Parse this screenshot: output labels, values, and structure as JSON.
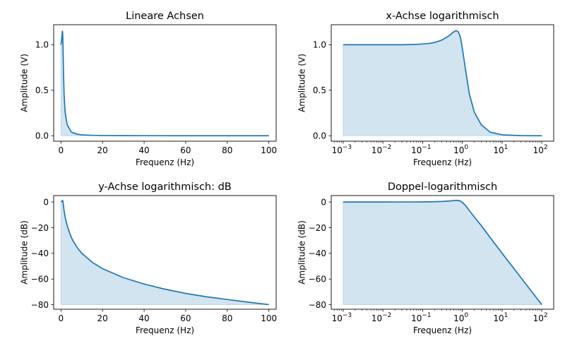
{
  "chart_data": [
    {
      "type": "area",
      "title": "Lineare Achsen",
      "xlabel": "Frequenz (Hz)",
      "ylabel": "Amplitude (V)",
      "xscale": "linear",
      "yscale": "linear",
      "xlim": [
        -3.5,
        103.5
      ],
      "ylim": [
        -0.06,
        1.22
      ],
      "xticks": [
        0,
        20,
        40,
        60,
        80,
        100
      ],
      "xtick_labels": [
        "0",
        "20",
        "40",
        "60",
        "80",
        "100"
      ],
      "yticks": [
        0.0,
        0.5,
        1.0
      ],
      "ytick_labels": [
        "0.0",
        "0.5",
        "1.0"
      ],
      "grid": false,
      "series": [
        {
          "color": "#1f77b4",
          "x": [
            0.001,
            0.3,
            0.5,
            0.6,
            0.7,
            0.8,
            0.9,
            1,
            1.2,
            1.5,
            2,
            3,
            5,
            8,
            10,
            15,
            20,
            30,
            40,
            60,
            80,
            100
          ],
          "y": [
            1.0,
            1.05,
            1.1,
            1.13,
            1.15,
            1.14,
            1.08,
            0.96,
            0.73,
            0.46,
            0.26,
            0.12,
            0.04,
            0.016,
            0.01,
            0.0045,
            0.0025,
            0.0011,
            0.0006,
            0.0003,
            0.00016,
            0.0001
          ]
        }
      ]
    },
    {
      "type": "area",
      "title": "x-Achse logarithmisch",
      "xlabel": "Frequenz (Hz)",
      "ylabel": "Amplitude (V)",
      "xscale": "log",
      "yscale": "linear",
      "xlim": [
        0.000501,
        199.5
      ],
      "ylim": [
        -0.06,
        1.22
      ],
      "xticks": [
        0.001,
        0.01,
        0.1,
        1,
        10,
        100
      ],
      "xtick_labels": [
        [
          "10",
          "−3"
        ],
        [
          "10",
          "−2"
        ],
        [
          "10",
          "−1"
        ],
        [
          "10",
          "0"
        ],
        [
          "10",
          "1"
        ],
        [
          "10",
          "2"
        ]
      ],
      "yticks": [
        0.0,
        0.5,
        1.0
      ],
      "ytick_labels": [
        "0.0",
        "0.5",
        "1.0"
      ],
      "grid": false,
      "series": [
        {
          "color": "#1f77b4",
          "x": [
            0.001,
            0.003,
            0.01,
            0.03,
            0.05,
            0.08,
            0.1,
            0.15,
            0.2,
            0.3,
            0.4,
            0.5,
            0.6,
            0.7,
            0.8,
            0.9,
            1,
            1.2,
            1.5,
            2,
            3,
            5,
            10,
            30,
            100
          ],
          "y": [
            1.0,
            1.0,
            1.0,
            1.0,
            1.002,
            1.005,
            1.008,
            1.015,
            1.025,
            1.05,
            1.08,
            1.11,
            1.14,
            1.155,
            1.14,
            1.08,
            0.96,
            0.73,
            0.46,
            0.26,
            0.12,
            0.04,
            0.01,
            0.0011,
            0.0001
          ]
        }
      ]
    },
    {
      "type": "area",
      "title": "y-Achse logarithmisch: dB",
      "xlabel": "Frequenz (Hz)",
      "ylabel": "Amplitude (dB)",
      "xscale": "linear",
      "yscale": "linear",
      "xlim": [
        -3.5,
        103.5
      ],
      "ylim": [
        -83.5,
        5.0
      ],
      "xticks": [
        0,
        20,
        40,
        60,
        80,
        100
      ],
      "xtick_labels": [
        "0",
        "20",
        "40",
        "60",
        "80",
        "100"
      ],
      "yticks": [
        -80,
        -60,
        -40,
        -20,
        0
      ],
      "ytick_labels": [
        "−80",
        "−60",
        "−40",
        "−20",
        "0"
      ],
      "grid": false,
      "series": [
        {
          "color": "#1f77b4",
          "x": [
            0.001,
            0.3,
            0.5,
            0.7,
            0.8,
            0.9,
            1,
            1.2,
            1.5,
            2,
            3,
            4,
            5,
            6,
            8,
            10,
            15,
            20,
            30,
            40,
            50,
            60,
            70,
            80,
            90,
            100
          ],
          "y": [
            0,
            0.4,
            0.8,
            1.2,
            1.15,
            0.7,
            -0.3,
            -2.7,
            -6.7,
            -11.7,
            -18.4,
            -23.4,
            -27.6,
            -30.8,
            -35.9,
            -39.9,
            -46.9,
            -51.9,
            -58.9,
            -63.9,
            -67.9,
            -71.2,
            -73.8,
            -75.9,
            -78.0,
            -79.9
          ]
        }
      ]
    },
    {
      "type": "area",
      "title": "Doppel-logarithmisch",
      "xlabel": "Frequenz (Hz)",
      "ylabel": "Amplitude (dB)",
      "xscale": "log",
      "yscale": "linear",
      "xlim": [
        0.000501,
        199.5
      ],
      "ylim": [
        -83.5,
        5.0
      ],
      "xticks": [
        0.001,
        0.01,
        0.1,
        1,
        10,
        100
      ],
      "xtick_labels": [
        [
          "10",
          "−3"
        ],
        [
          "10",
          "−2"
        ],
        [
          "10",
          "−1"
        ],
        [
          "10",
          "0"
        ],
        [
          "10",
          "1"
        ],
        [
          "10",
          "2"
        ]
      ],
      "yticks": [
        -80,
        -60,
        -40,
        -20,
        0
      ],
      "ytick_labels": [
        "−80",
        "−60",
        "−40",
        "−20",
        "0"
      ],
      "grid": false,
      "series": [
        {
          "color": "#1f77b4",
          "x": [
            0.001,
            0.01,
            0.05,
            0.1,
            0.2,
            0.3,
            0.5,
            0.6,
            0.7,
            0.8,
            0.9,
            1,
            1.2,
            1.5,
            2,
            3,
            5,
            10,
            20,
            50,
            100
          ],
          "y": [
            0,
            0,
            0.02,
            0.07,
            0.2,
            0.4,
            0.8,
            1.1,
            1.25,
            1.15,
            0.7,
            -0.3,
            -2.7,
            -6.7,
            -11.7,
            -18.4,
            -27.6,
            -39.9,
            -51.9,
            -67.9,
            -79.9
          ]
        }
      ]
    }
  ]
}
